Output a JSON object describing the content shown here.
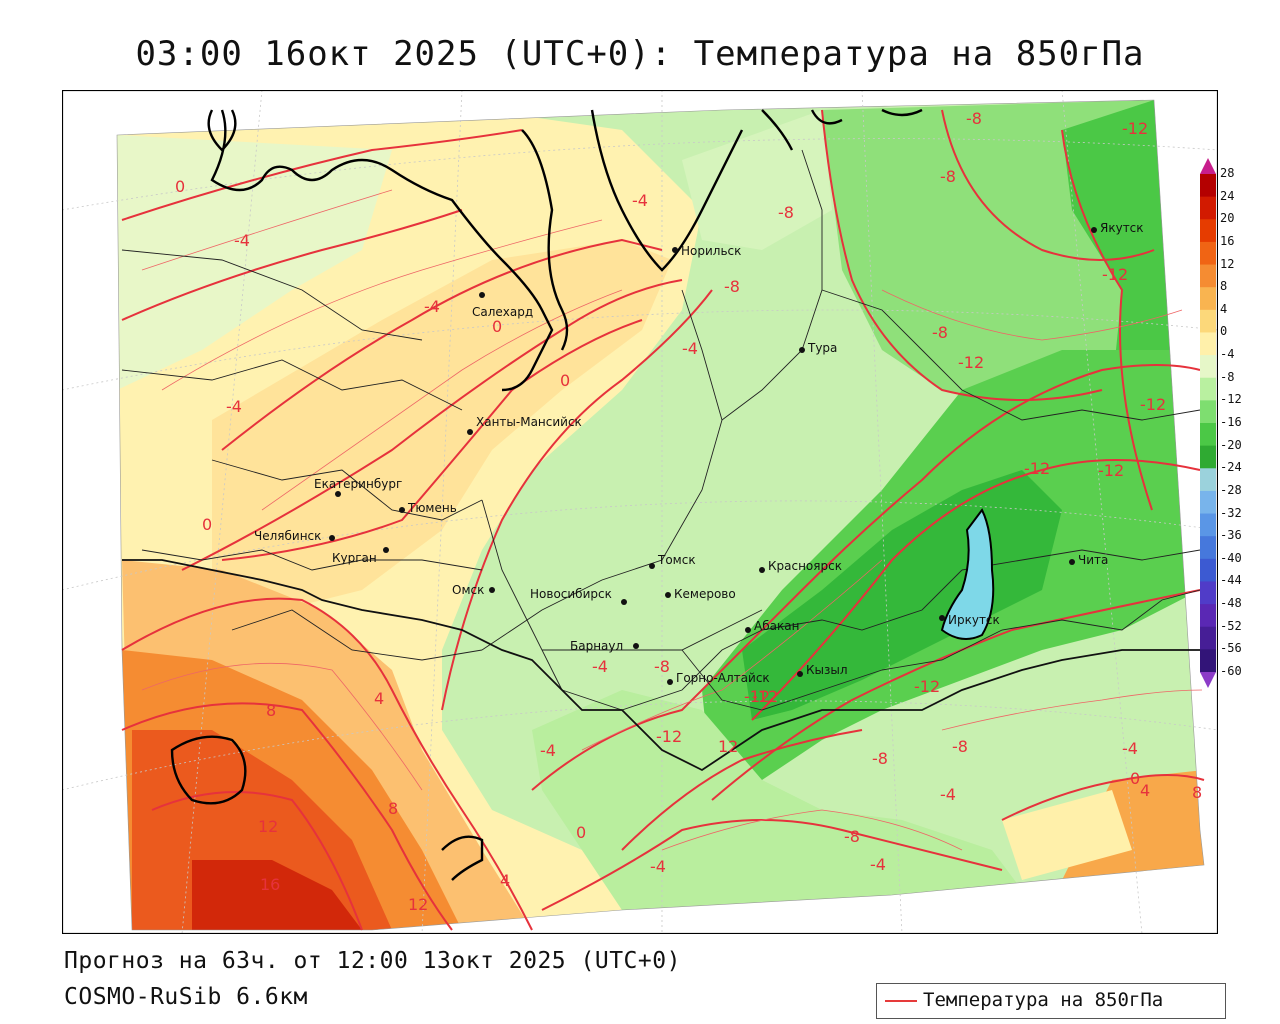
{
  "title": "03:00 16окт 2025 (UTC+0): Температура на 850гПа",
  "footer": {
    "forecast": "Прогноз на 63ч. от 12:00 13окт 2025 (UTC+0)",
    "model": "COSMO-RuSib 6.6км"
  },
  "legend": {
    "label": "Температура на 850гПа",
    "color": "#e63a3a"
  },
  "colorbar": {
    "ticks": [
      "28",
      "24",
      "20",
      "16",
      "12",
      "8",
      "4",
      "0",
      "-4",
      "-8",
      "-12",
      "-16",
      "-20",
      "-24",
      "-28",
      "-32",
      "-36",
      "-40",
      "-44",
      "-48",
      "-52",
      "-56",
      "-60"
    ],
    "colors": [
      "#b40000",
      "#d21a00",
      "#e63c00",
      "#f06414",
      "#f58c32",
      "#f9b450",
      "#fcd87a",
      "#fff0aa",
      "#e6f7c8",
      "#b9f0a0",
      "#7ede70",
      "#4bc846",
      "#2faa32",
      "#9bd2dc",
      "#78b4eb",
      "#5a96e6",
      "#4678dc",
      "#3c5ad2",
      "#503cc8",
      "#5a28b4",
      "#461e96",
      "#321478",
      "#6e1e9b"
    ]
  },
  "contour_labels": [
    "0",
    "-4",
    "-4",
    "0",
    "-4",
    "-4",
    "0",
    "-4",
    "0",
    "4",
    "8",
    "12",
    "16",
    "12",
    "8",
    "4",
    "0",
    "-4",
    "-4",
    "-8",
    "-8",
    "-8",
    "-8",
    "-12",
    "-12",
    "-12",
    "-12",
    "-12",
    "-12",
    "-12",
    "-12",
    "-8",
    "-12",
    "12",
    "-8",
    "-8",
    "-4",
    "-8",
    "-4",
    "-4",
    "0",
    "4",
    "8",
    "-12",
    "-8",
    "-4"
  ],
  "cities": [
    {
      "name": "Норильск"
    },
    {
      "name": "Салехард"
    },
    {
      "name": "Тура"
    },
    {
      "name": "Якутск"
    },
    {
      "name": "Ханты-Мансийск"
    },
    {
      "name": "Екатеринбург"
    },
    {
      "name": "Тюмень"
    },
    {
      "name": "Челябинск"
    },
    {
      "name": "Курган"
    },
    {
      "name": "Омск"
    },
    {
      "name": "Томск"
    },
    {
      "name": "Новосибирск"
    },
    {
      "name": "Кемерово"
    },
    {
      "name": "Красноярск"
    },
    {
      "name": "Абакан"
    },
    {
      "name": "Барнаул"
    },
    {
      "name": "Горно-Алтайск"
    },
    {
      "name": "Кызыл"
    },
    {
      "name": "Иркутск"
    },
    {
      "name": "Чита"
    }
  ]
}
